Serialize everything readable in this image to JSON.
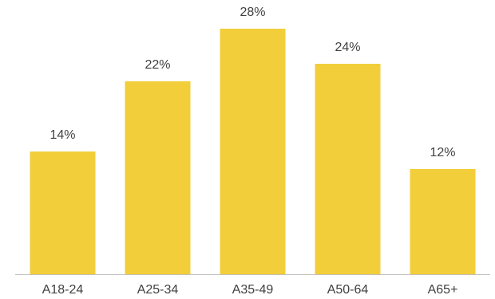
{
  "chart_data": {
    "type": "bar",
    "categories": [
      "A18-24",
      "A25-34",
      "A35-49",
      "A50-64",
      "A65+"
    ],
    "values": [
      14,
      22,
      28,
      24,
      12
    ],
    "value_labels": [
      "14%",
      "22%",
      "28%",
      "24%",
      "12%"
    ],
    "title": "",
    "xlabel": "",
    "ylabel": "",
    "ylim": [
      0,
      30
    ],
    "grid": false,
    "legend": "none",
    "bar_color": "#F2CE3B"
  }
}
